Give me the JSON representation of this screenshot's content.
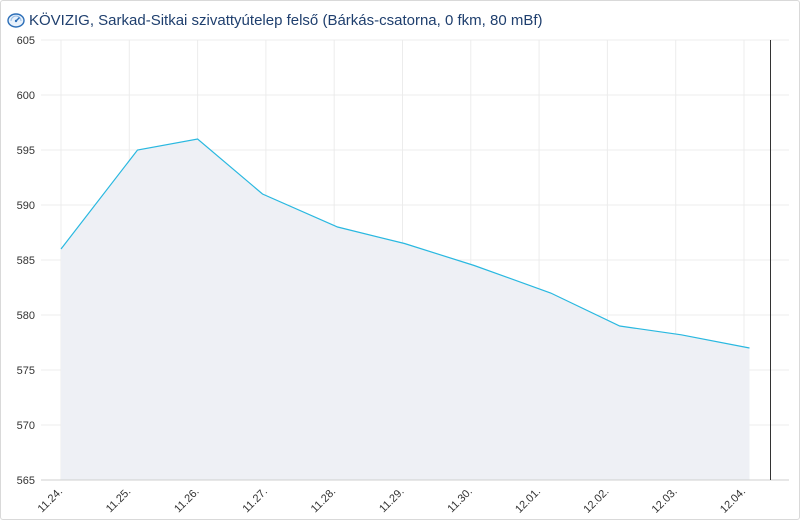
{
  "header": {
    "title": "KÖVIZIG, Sarkad-Sitkai szivattyútelep felső (Bárkás-csatorna, 0 fkm, 80 mBf)",
    "icon": "gauge-icon"
  },
  "colors": {
    "line": "#29b8e0",
    "fill": "#eef0f5",
    "grid": "#ececec",
    "title": "#1f3f6e"
  },
  "chart_data": {
    "type": "area",
    "title": "KÖVIZIG, Sarkad-Sitkai szivattyútelep felső (Bárkás-csatorna, 0 fkm, 80 mBf)",
    "xlabel": "",
    "ylabel": "",
    "categories": [
      "11.24.",
      "11.25.",
      "11.26.",
      "11.27.",
      "11.28.",
      "11.29.",
      "11.30.",
      "12.01.",
      "12.02.",
      "12.03.",
      "12.04."
    ],
    "x": [
      0,
      1.12,
      2.0,
      2.95,
      4.05,
      5.03,
      6.05,
      7.17,
      8.18,
      9.08,
      10.08
    ],
    "series": [
      {
        "values": [
          586,
          595,
          596,
          591,
          588,
          586.5,
          584.5,
          582,
          579,
          578.2,
          577
        ]
      }
    ],
    "yticks": [
      565,
      570,
      575,
      580,
      585,
      590,
      595,
      600,
      605
    ],
    "ylim": [
      565,
      605
    ],
    "grid": true,
    "legend": "none"
  }
}
